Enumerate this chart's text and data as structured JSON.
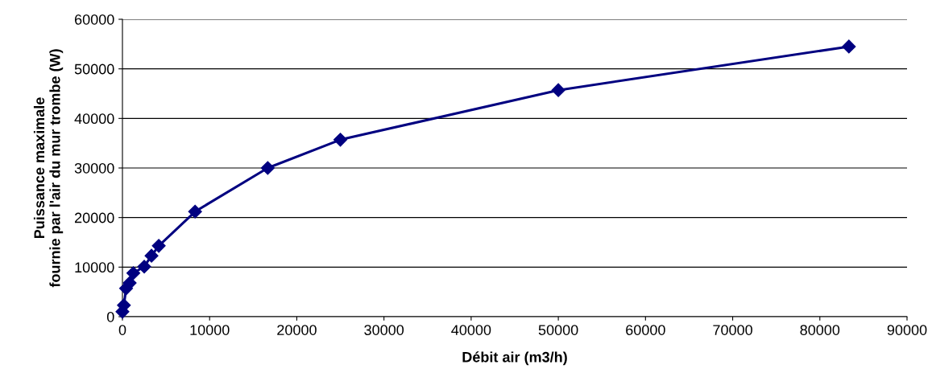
{
  "chart_data": {
    "type": "line",
    "xlabel": "Débit air (m3/h)",
    "ylabel": "Puissance maximale\nfournie par l'air du mur trombe (W)",
    "x": [
      0,
      167,
      417,
      833,
      1250,
      2500,
      3333,
      4167,
      8333,
      16667,
      25000,
      50000,
      83333
    ],
    "series": [
      {
        "color": "#000080",
        "values": [
          1000,
          2300,
          5700,
          6800,
          8800,
          10100,
          12300,
          14300,
          21200,
          30000,
          35700,
          45700,
          54500
        ]
      }
    ],
    "xlim": [
      0,
      90000
    ],
    "xticks": [
      0,
      10000,
      20000,
      30000,
      40000,
      50000,
      60000,
      70000,
      80000,
      90000
    ],
    "ylim": [
      0,
      60000
    ],
    "yticks": [
      0,
      10000,
      20000,
      30000,
      40000,
      50000,
      60000
    ],
    "grid": "y",
    "marker": "diamond",
    "line_style": "solid",
    "legend": false
  }
}
